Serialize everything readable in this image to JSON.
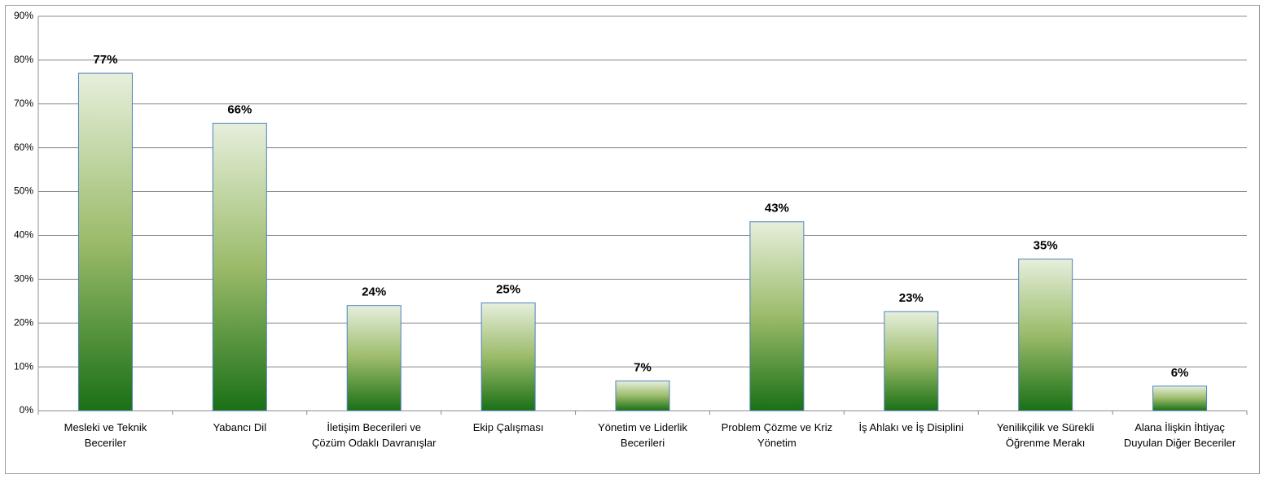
{
  "chart_data": {
    "type": "bar",
    "categories": [
      "Mesleki ve Teknik Beceriler",
      "Yabancı Dil",
      "İletişim Becerileri ve Çözüm Odaklı Davranışlar",
      "Ekip Çalışması",
      "Yönetim ve Liderlik Becerileri",
      "Problem Çözme ve Kriz Yönetim",
      "İş Ahlakı ve İş Disiplini",
      "Yenilikçilik  ve Sürekli Öğrenme Merakı",
      "Alana İlişkin İhtiyaç Duyulan Diğer Beceriler"
    ],
    "values": [
      77,
      65.6,
      24,
      24.6,
      6.8,
      43.1,
      22.6,
      34.6,
      5.6
    ],
    "value_labels": [
      "77%",
      "66%",
      "24%",
      "25%",
      "7%",
      "43%",
      "23%",
      "35%",
      "6%"
    ],
    "color": "#1a7016",
    "ylim": [
      0,
      90
    ],
    "yticks": [
      {
        "value": 0,
        "label": "0%"
      },
      {
        "value": 10,
        "label": "10%"
      },
      {
        "value": 20,
        "label": "20%"
      },
      {
        "value": 30,
        "label": "30%"
      },
      {
        "value": 40,
        "label": "40%"
      },
      {
        "value": 50,
        "label": "50%"
      },
      {
        "value": 60,
        "label": "60%"
      },
      {
        "value": 70,
        "label": "70%"
      },
      {
        "value": 80,
        "label": "80%"
      },
      {
        "value": 90,
        "label": "90%"
      }
    ],
    "grid": true
  }
}
